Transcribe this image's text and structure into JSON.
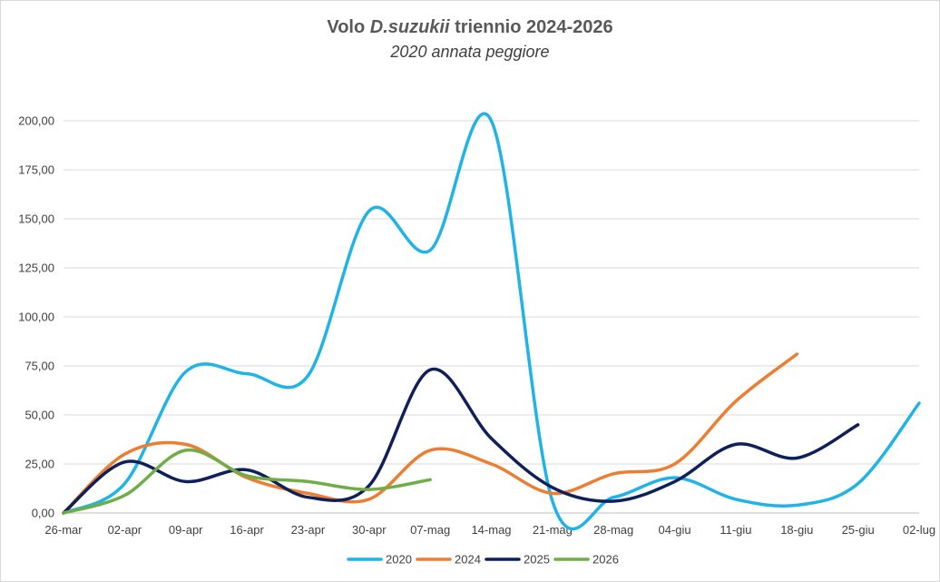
{
  "chart_data": {
    "type": "line",
    "title_prefix": "Volo ",
    "title_italic": "D.suzukii",
    "title_suffix": " triennio 2024-2026",
    "subtitle": "2020 annata peggiore",
    "categories": [
      "26-mar",
      "02-apr",
      "09-apr",
      "16-apr",
      "23-apr",
      "30-apr",
      "07-mag",
      "14-mag",
      "21-mag",
      "28-mag",
      "04-giu",
      "11-giu",
      "18-giu",
      "25-giu",
      "02-lug"
    ],
    "ylim": [
      0,
      200
    ],
    "yticks": [
      "0,00",
      "25,00",
      "50,00",
      "75,00",
      "100,00",
      "125,00",
      "150,00",
      "175,00",
      "200,00"
    ],
    "grid": true,
    "legend_position": "bottom",
    "series": [
      {
        "name": "2020",
        "color": "#1fb3e8",
        "values": [
          0,
          15,
          72,
          71,
          70,
          154,
          134,
          200,
          6,
          8,
          18,
          7,
          4,
          15,
          56
        ]
      },
      {
        "name": "2024",
        "color": "#ed7d31",
        "values": [
          0,
          30,
          35,
          18,
          10,
          7,
          32,
          25,
          10,
          20,
          25,
          57,
          81,
          null,
          null
        ]
      },
      {
        "name": "2025",
        "color": "#0f1f5c",
        "values": [
          0,
          26,
          16,
          22,
          8,
          14,
          73,
          38,
          13,
          6,
          16,
          35,
          28,
          45,
          null
        ]
      },
      {
        "name": "2026",
        "color": "#70ad47",
        "values": [
          0,
          9,
          32,
          19,
          16,
          12,
          17,
          null,
          null,
          null,
          null,
          null,
          null,
          null,
          null
        ]
      }
    ]
  }
}
